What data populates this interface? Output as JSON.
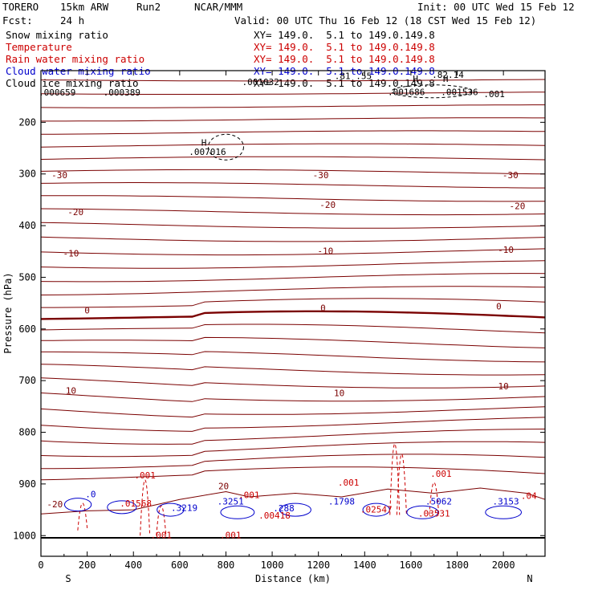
{
  "header": {
    "model": "TORERO",
    "resolution": "15km ARW",
    "run": "Run2",
    "org": "NCAR/MMM",
    "init": "Init: 00 UTC Wed 15 Feb 12",
    "fcst_label": "Fcst:",
    "fcst_value": "24 h",
    "valid": "Valid: 00 UTC Thu 16 Feb 12 (18 CST Wed 15 Feb 12)"
  },
  "fields": [
    {
      "name": "Snow mixing ratio",
      "xy": "XY= 149.0.  5.1 to 149.0.149.8",
      "color": "#000000"
    },
    {
      "name": "Temperature",
      "xy": "XY= 149.0.  5.1 to 149.0.149.8",
      "color": "#cc0000"
    },
    {
      "name": "Rain water mixing ratio",
      "xy": "XY= 149.0.  5.1 to 149.0.149.8",
      "color": "#cc0000"
    },
    {
      "name": "Cloud water mixing ratio",
      "xy": "XY= 149.0.  5.1 to 149.0.149.8",
      "color": "#0000cc"
    },
    {
      "name": "Cloud ice mixing ratio",
      "xy": "XY= 149.0.  5.1 to 149.0.149.8",
      "color": "#000000"
    }
  ],
  "chart_data": {
    "type": "cross-section",
    "xlabel": "Distance (km)",
    "ylabel": "Pressure (hPa)",
    "xlim": [
      0,
      2180
    ],
    "ylim": [
      100,
      1040
    ],
    "x_ticks": [
      "0",
      "200",
      "400",
      "600",
      "800",
      "1000",
      "1200",
      "1400",
      "1600",
      "1800",
      "2000"
    ],
    "y_ticks": [
      "200",
      "300",
      "400",
      "500",
      "600",
      "700",
      "800",
      "900",
      "1000"
    ],
    "x_end_labels": {
      "left": "S",
      "right": "N"
    },
    "temperature_labels": [
      {
        "text": "-30",
        "x": 80,
        "p": 308
      },
      {
        "text": "-30",
        "x": 1210,
        "p": 308
      },
      {
        "text": "-30",
        "x": 2030,
        "p": 308
      },
      {
        "text": "-20",
        "x": 150,
        "p": 380
      },
      {
        "text": "-20",
        "x": 1240,
        "p": 366
      },
      {
        "text": "-20",
        "x": 2060,
        "p": 368
      },
      {
        "text": "-10",
        "x": 130,
        "p": 460
      },
      {
        "text": "-10",
        "x": 1230,
        "p": 455
      },
      {
        "text": "-10",
        "x": 2010,
        "p": 453
      },
      {
        "text": "0",
        "x": 200,
        "p": 570
      },
      {
        "text": "0",
        "x": 1220,
        "p": 565
      },
      {
        "text": "0",
        "x": 1980,
        "p": 562
      },
      {
        "text": "10",
        "x": 130,
        "p": 725
      },
      {
        "text": "10",
        "x": 1290,
        "p": 730
      },
      {
        "text": "10",
        "x": 2000,
        "p": 717
      },
      {
        "text": "20",
        "x": 790,
        "p": 910
      },
      {
        "text": "-20",
        "x": 60,
        "p": 945
      }
    ],
    "snow_labels": [
      {
        "text": ".000659",
        "x": 70,
        "p": 148
      },
      {
        "text": ".000389",
        "x": 350,
        "p": 148
      },
      {
        "text": ".001032",
        "x": 950,
        "p": 128
      },
      {
        "text": ".001686",
        "x": 1580,
        "p": 147
      },
      {
        "text": ".001536",
        "x": 1810,
        "p": 147
      },
      {
        "text": ".001",
        "x": 1960,
        "p": 151
      },
      {
        "text": ".007016",
        "x": 720,
        "p": 263
      },
      {
        "text": "H",
        "x": 705,
        "p": 245
      },
      {
        "text": "H",
        "x": 1620,
        "p": 122
      },
      {
        "text": "H",
        "x": 1750,
        "p": 122
      },
      {
        "text": ".81 .55",
        "x": 1350,
        "p": 116
      },
      {
        "text": ".82.14",
        "x": 1760,
        "p": 114
      }
    ],
    "rain_labels": [
      {
        "text": ".001",
        "x": 450,
        "p": 889
      },
      {
        "text": ".01568",
        "x": 410,
        "p": 944
      },
      {
        "text": ".001",
        "x": 900,
        "p": 927
      },
      {
        "text": ".00418",
        "x": 1010,
        "p": 967
      },
      {
        "text": ".001",
        "x": 1330,
        "p": 903
      },
      {
        "text": ".02547",
        "x": 1450,
        "p": 955
      },
      {
        "text": ".001",
        "x": 1730,
        "p": 886
      },
      {
        "text": ".03531",
        "x": 1700,
        "p": 963
      },
      {
        "text": ".001",
        "x": 820,
        "p": 1005
      },
      {
        "text": ".001",
        "x": 520,
        "p": 1005
      },
      {
        "text": ".04",
        "x": 2110,
        "p": 929
      }
    ],
    "cloud_water_labels": [
      {
        "text": ".3219",
        "x": 620,
        "p": 952
      },
      {
        "text": ".3251",
        "x": 820,
        "p": 940
      },
      {
        "text": ".288",
        "x": 1050,
        "p": 953
      },
      {
        "text": ".1798",
        "x": 1300,
        "p": 940
      },
      {
        "text": ".5062",
        "x": 1720,
        "p": 940
      },
      {
        "text": ".3153",
        "x": 2010,
        "p": 940
      },
      {
        "text": ".0",
        "x": 215,
        "p": 926
      }
    ]
  }
}
